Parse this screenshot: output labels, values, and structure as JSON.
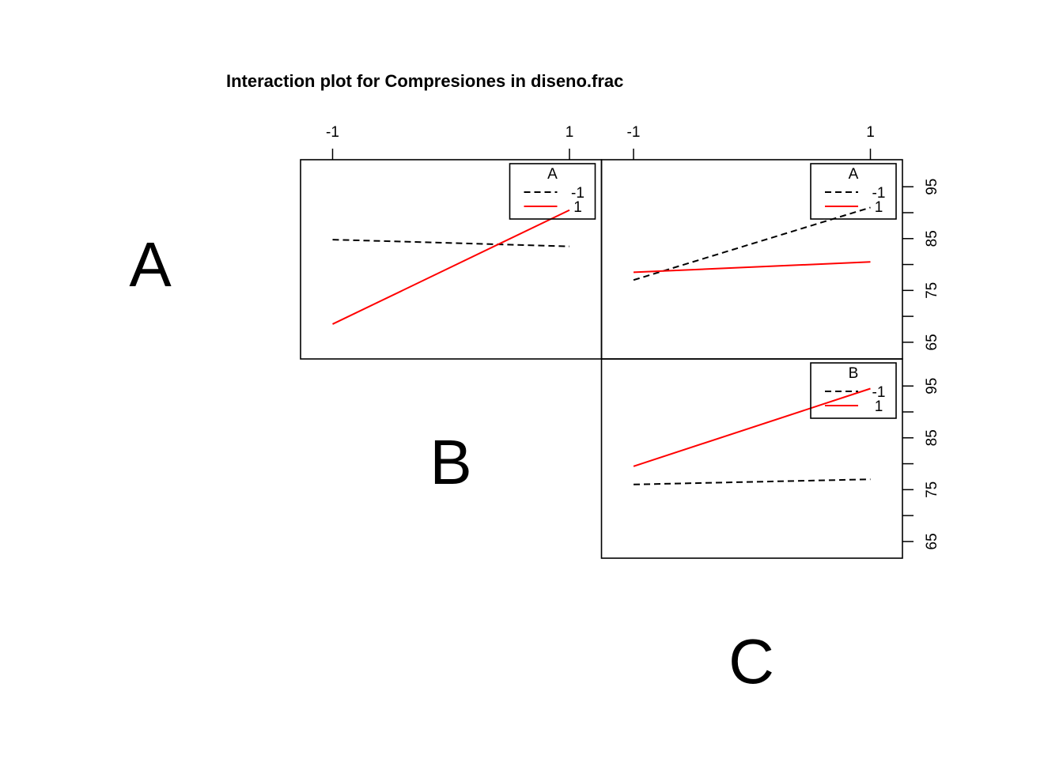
{
  "colors": {
    "level_minus1": "#000000",
    "level_plus1": "#ff0000",
    "frame": "#000000"
  },
  "chart_data": {
    "type": "line",
    "title": "Interaction plot for Compresiones in diseno.frac",
    "response": "Compresiones",
    "factors": [
      "A",
      "B",
      "C"
    ],
    "factor_levels": [
      "-1",
      "1"
    ],
    "top_ticks": [
      "-1",
      "1"
    ],
    "right_axis_ticks": [
      "95",
      "85",
      "75",
      "65"
    ],
    "ylim": [
      63,
      99
    ],
    "grid": false,
    "panels": [
      {
        "row": 0,
        "col": 0,
        "x_factor": "B",
        "trace_factor": "A",
        "legend_title": "A",
        "x": [
          -1,
          1
        ],
        "series": [
          {
            "name": "-1",
            "style": "dashed",
            "values": [
              84.8,
              83.5
            ]
          },
          {
            "name": "1",
            "style": "solid",
            "values": [
              68.5,
              90.5
            ]
          }
        ]
      },
      {
        "row": 0,
        "col": 1,
        "x_factor": "C",
        "trace_factor": "A",
        "legend_title": "A",
        "x": [
          -1,
          1
        ],
        "series": [
          {
            "name": "-1",
            "style": "dashed",
            "values": [
              77.0,
              91.0
            ]
          },
          {
            "name": "1",
            "style": "solid",
            "values": [
              78.5,
              80.5
            ]
          }
        ]
      },
      {
        "row": 1,
        "col": 1,
        "x_factor": "C",
        "trace_factor": "B",
        "legend_title": "B",
        "x": [
          -1,
          1
        ],
        "series": [
          {
            "name": "-1",
            "style": "dashed",
            "values": [
              76.0,
              77.0
            ]
          },
          {
            "name": "1",
            "style": "solid",
            "values": [
              79.5,
              94.5
            ]
          }
        ]
      }
    ],
    "diagonal_labels": [
      "A",
      "B",
      "C"
    ]
  }
}
